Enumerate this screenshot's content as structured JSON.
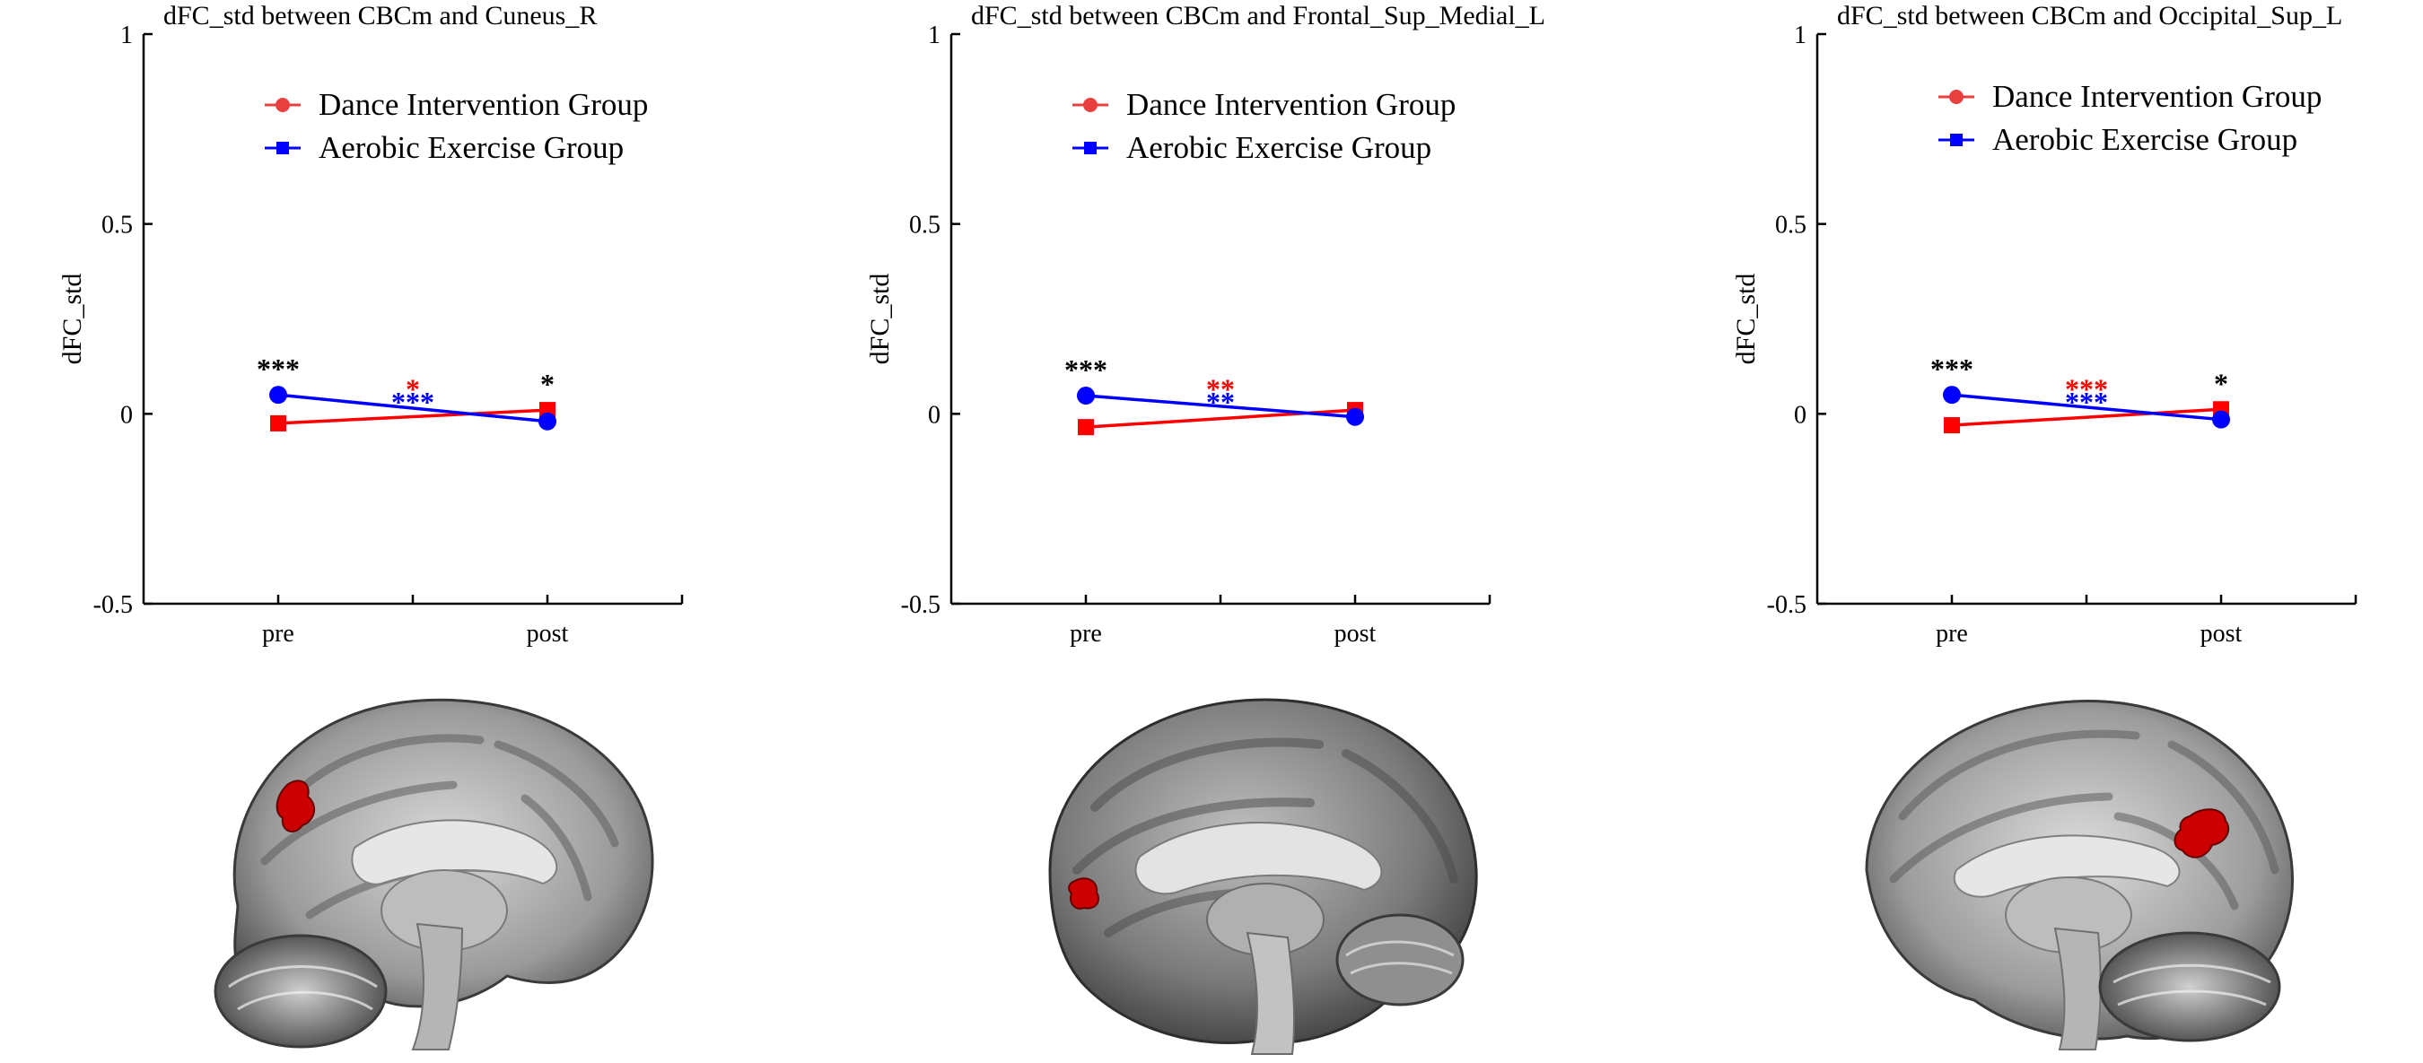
{
  "colors": {
    "dance": "#ff0000",
    "dance_legend": "#e8403f",
    "aerobic": "#0000ff",
    "sig_black": "#000000",
    "roi_red": "#cc0000",
    "axis": "#000000"
  },
  "icons": {
    "dance_marker": "square",
    "aerobic_marker": "circle",
    "dance_legend_marker": "circle",
    "aerobic_legend_marker": "square"
  },
  "chart_data": [
    {
      "type": "line",
      "title": "dFC_std between CBCm and Cuneus_R",
      "ylabel": "dFC_std",
      "xlabel": "",
      "categories": [
        "pre",
        "post"
      ],
      "ylim": [
        -0.5,
        1
      ],
      "yticks": [
        -0.5,
        0,
        0.5,
        1
      ],
      "ytick_labels": [
        "-0.5",
        "0",
        "0.5",
        "1"
      ],
      "grid": false,
      "legend_position": "top",
      "series": [
        {
          "name": "Dance Intervention Group",
          "values": [
            -0.025,
            0.01
          ]
        },
        {
          "name": "Aerobic Exercise Group",
          "values": [
            0.05,
            -0.02
          ]
        }
      ],
      "significance": {
        "pre": "***",
        "change_dance": "*",
        "change_aerobic": "***",
        "post": "*"
      }
    },
    {
      "type": "line",
      "title": "dFC_std between CBCm and Frontal_Sup_Medial_L",
      "ylabel": "dFC_std",
      "xlabel": "",
      "categories": [
        "pre",
        "post"
      ],
      "ylim": [
        -0.5,
        1
      ],
      "yticks": [
        -0.5,
        0,
        0.5,
        1
      ],
      "ytick_labels": [
        "-0.5",
        "0",
        "0.5",
        "1"
      ],
      "grid": false,
      "legend_position": "top",
      "series": [
        {
          "name": "Dance Intervention Group",
          "values": [
            -0.035,
            0.01
          ]
        },
        {
          "name": "Aerobic Exercise Group",
          "values": [
            0.048,
            -0.008
          ]
        }
      ],
      "significance": {
        "pre": "***",
        "change_dance": "**",
        "change_aerobic": "**",
        "post": ""
      }
    },
    {
      "type": "line",
      "title": "dFC_std between CBCm and Occipital_Sup_L",
      "ylabel": "dFC_std",
      "xlabel": "",
      "categories": [
        "pre",
        "post"
      ],
      "ylim": [
        -0.5,
        1
      ],
      "yticks": [
        -0.5,
        0,
        0.5,
        1
      ],
      "ytick_labels": [
        "-0.5",
        "0",
        "0.5",
        "1"
      ],
      "grid": false,
      "legend_position": "top",
      "series": [
        {
          "name": "Dance Intervention Group",
          "values": [
            -0.03,
            0.012
          ]
        },
        {
          "name": "Aerobic Exercise Group",
          "values": [
            0.05,
            -0.015
          ]
        }
      ],
      "significance": {
        "pre": "***",
        "change_dance": "***",
        "change_aerobic": "***",
        "post": "*"
      }
    }
  ],
  "brain_images": [
    {
      "view": "sagittal-left-facing",
      "roi": "Cuneus_R"
    },
    {
      "view": "sagittal-oblique",
      "roi": "Frontal_Sup_Medial_L"
    },
    {
      "view": "sagittal-right-facing",
      "roi": "Occipital_Sup_L"
    }
  ]
}
